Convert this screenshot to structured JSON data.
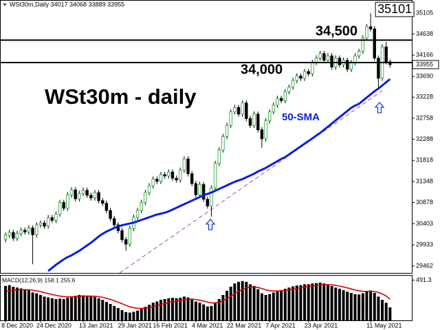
{
  "chart_data": {
    "type": "candlestick",
    "header": "WSt30m,Daily 34017 34068 33889 33955",
    "title": "WSt30m - daily",
    "categories": [
      "8 Dec 2020",
      null,
      null,
      null,
      null,
      null,
      null,
      null,
      null,
      "24 Dec 2020",
      null,
      null,
      null,
      null,
      null,
      null,
      null,
      null,
      null,
      null,
      "13 Jan 2021",
      null,
      null,
      null,
      null,
      null,
      null,
      null,
      null,
      null,
      "29 Jan 2021",
      null,
      null,
      null,
      null,
      null,
      null,
      null,
      null,
      "16 Feb 2021",
      null,
      null,
      null,
      null,
      null,
      null,
      null,
      null,
      null,
      "4 Mar 2021",
      null,
      null,
      null,
      null,
      null,
      null,
      null,
      null,
      "22 Mar 2021",
      null,
      null,
      null,
      null,
      null,
      null,
      null,
      null,
      null,
      "7 Apr 2021",
      null,
      null,
      null,
      null,
      null,
      null,
      null,
      null,
      null,
      "23 Apr 2021",
      null,
      null,
      null,
      null,
      null,
      null,
      null,
      null,
      null,
      null,
      null,
      null,
      null,
      null,
      null,
      "11 May 2021",
      null,
      null,
      null,
      null,
      null
    ],
    "open": [
      30050,
      30150,
      30210,
      30080,
      30190,
      30260,
      30220,
      30310,
      30160,
      30380,
      30420,
      30350,
      30540,
      30480,
      30620,
      30880,
      30750,
      31050,
      31160,
      30960,
      31080,
      31150,
      31040,
      30980,
      31100,
      30920,
      30860,
      30700,
      30520,
      30380,
      30250,
      30050,
      29950,
      30300,
      30550,
      30700,
      30880,
      31100,
      31250,
      31400,
      31350,
      31500,
      31470,
      31560,
      31420,
      31380,
      31600,
      31850,
      31520,
      31300,
      31050,
      31280,
      30950,
      30800,
      31200,
      31750,
      32050,
      32350,
      32600,
      32900,
      33000,
      32850,
      33100,
      32750,
      32600,
      32850,
      32500,
      32300,
      32700,
      32900,
      33050,
      33200,
      33150,
      33350,
      33450,
      33600,
      33700,
      33650,
      33800,
      33750,
      34000,
      34100,
      34200,
      34050,
      34150,
      33900,
      34100,
      33950,
      34050,
      33850,
      34000,
      34150,
      34250,
      34550,
      34800,
      34750,
      34100,
      33650,
      34350,
      34017
    ],
    "high": [
      30210,
      30270,
      30270,
      30250,
      30320,
      30320,
      30370,
      30370,
      30440,
      30480,
      30480,
      30600,
      30600,
      30680,
      30940,
      30940,
      31110,
      31220,
      31220,
      31140,
      31210,
      31210,
      31100,
      31160,
      31160,
      30980,
      30920,
      30760,
      30580,
      30440,
      30310,
      30110,
      30360,
      30610,
      30760,
      30940,
      31160,
      31310,
      31460,
      31460,
      31560,
      31560,
      31620,
      31620,
      31480,
      31660,
      31910,
      31910,
      31580,
      31360,
      31340,
      31340,
      31010,
      31260,
      31810,
      32110,
      32410,
      32660,
      32960,
      33060,
      33060,
      33160,
      33160,
      32810,
      32910,
      32910,
      32560,
      32760,
      32960,
      33110,
      33260,
      33260,
      33410,
      33510,
      33660,
      33760,
      33760,
      33860,
      33860,
      34060,
      34160,
      34260,
      34260,
      34210,
      34210,
      34160,
      34160,
      34110,
      34110,
      34060,
      34210,
      34310,
      34610,
      34860,
      35101,
      34810,
      34160,
      34410,
      34460,
      34068
    ],
    "low": [
      29990,
      30090,
      30020,
      30020,
      30130,
      30160,
      30160,
      29500,
      30100,
      30320,
      30290,
      30290,
      30420,
      30420,
      30560,
      30690,
      30690,
      30990,
      30900,
      30900,
      31020,
      30980,
      30920,
      30920,
      30860,
      30800,
      30640,
      30460,
      30320,
      30190,
      29990,
      29800,
      29890,
      30240,
      30490,
      30640,
      30820,
      31040,
      31190,
      31290,
      31290,
      31410,
      31410,
      31360,
      31320,
      31320,
      31540,
      31460,
      31240,
      30990,
      30990,
      30890,
      30740,
      30560,
      31140,
      31690,
      31990,
      32290,
      32540,
      32840,
      32790,
      32790,
      32690,
      32540,
      32540,
      32440,
      32100,
      32240,
      32640,
      32840,
      32990,
      33090,
      33090,
      33290,
      33390,
      33540,
      33590,
      33590,
      33690,
      33690,
      33940,
      34040,
      33990,
      33990,
      33840,
      33840,
      33890,
      33890,
      33790,
      33790,
      33940,
      34090,
      34190,
      34490,
      34690,
      34040,
      33420,
      33590,
      33960,
      33889
    ],
    "close": [
      30150,
      30210,
      30080,
      30190,
      30260,
      30220,
      30310,
      30160,
      30380,
      30420,
      30350,
      30540,
      30480,
      30620,
      30880,
      30750,
      31050,
      31160,
      30960,
      31080,
      31150,
      31040,
      30980,
      31100,
      30920,
      30860,
      30700,
      30520,
      30380,
      30250,
      30050,
      29950,
      30300,
      30550,
      30700,
      30880,
      31100,
      31250,
      31400,
      31350,
      31500,
      31470,
      31560,
      31420,
      31380,
      31600,
      31850,
      31520,
      31300,
      31050,
      31280,
      30950,
      30800,
      31200,
      31750,
      32050,
      32350,
      32600,
      32900,
      33000,
      32850,
      33100,
      32750,
      32600,
      32850,
      32500,
      32300,
      32700,
      32900,
      33050,
      33200,
      33150,
      33350,
      33450,
      33600,
      33700,
      33650,
      33800,
      33750,
      34000,
      34100,
      34200,
      34050,
      34150,
      33900,
      34100,
      33950,
      34050,
      33850,
      34000,
      34150,
      34250,
      34550,
      34800,
      34750,
      34100,
      33650,
      34350,
      34017,
      33955
    ],
    "up_color": "#ffffff",
    "up_stroke": "#1f9a2e",
    "down_color": "#000000",
    "ylim": [
      29307,
      35380
    ],
    "yticks": [
      29462,
      29933,
      30403,
      30878,
      31348,
      31818,
      32288,
      32758,
      33228,
      33690,
      34166,
      34638,
      35105
    ],
    "series": [
      {
        "name": "50-SMA",
        "color": "#0a1ee0",
        "values": [
          null,
          null,
          null,
          null,
          null,
          null,
          null,
          null,
          null,
          null,
          null,
          29350,
          29420,
          29490,
          29550,
          29610,
          29660,
          29700,
          29750,
          29800,
          29860,
          29920,
          29980,
          30050,
          30120,
          30180,
          30230,
          30270,
          30310,
          30345,
          30370,
          30390,
          30410,
          30430,
          30460,
          30490,
          30520,
          30550,
          30580,
          30610,
          30630,
          30650,
          30680,
          30720,
          30760,
          30800,
          30840,
          30880,
          30920,
          30960,
          31000,
          31040,
          31070,
          31100,
          31140,
          31180,
          31220,
          31260,
          31300,
          31340,
          31370,
          31400,
          31440,
          31480,
          31520,
          31570,
          31610,
          31650,
          31700,
          31750,
          31800,
          31850,
          31890,
          31950,
          32010,
          32070,
          32130,
          32190,
          32250,
          32310,
          32370,
          32430,
          32500,
          32570,
          32640,
          32710,
          32780,
          32850,
          32920,
          32990,
          33040,
          33080,
          33150,
          33220,
          33290,
          33360,
          33420,
          33490,
          33560,
          33630
        ]
      }
    ],
    "levels": [
      {
        "value": 34500,
        "label": "34,500"
      },
      {
        "value": 34000,
        "label": "34,000"
      }
    ],
    "macd": {
      "title": "MACD(12,26,9) 158.1 255.6",
      "color": "#000000",
      "histogram": [
        420,
        430,
        410,
        400,
        390,
        380,
        370,
        340,
        330,
        310,
        290,
        280,
        270,
        260,
        265,
        260,
        275,
        290,
        300,
        310,
        305,
        300,
        290,
        285,
        270,
        250,
        225,
        200,
        175,
        150,
        125,
        100,
        95,
        105,
        120,
        140,
        165,
        190,
        215,
        230,
        250,
        260,
        270,
        275,
        270,
        275,
        290,
        280,
        260,
        230,
        215,
        195,
        170,
        175,
        210,
        260,
        310,
        360,
        410,
        450,
        470,
        480,
        470,
        440,
        420,
        380,
        330,
        310,
        320,
        340,
        360,
        370,
        385,
        400,
        415,
        425,
        430,
        440,
        440,
        450,
        455,
        460,
        450,
        440,
        420,
        400,
        385,
        370,
        350,
        335,
        320,
        315,
        330,
        355,
        365,
        335,
        290,
        250,
        215,
        158.1
      ],
      "signal": {
        "color": "#e00000",
        "values": [
          350,
          360,
          368,
          372,
          375,
          375,
          374,
          368,
          361,
          351,
          339,
          327,
          316,
          305,
          297,
          290,
          287,
          287,
          289,
          293,
          296,
          297,
          296,
          294,
          289,
          282,
          270,
          256,
          240,
          222,
          203,
          183,
          166,
          153,
          147,
          146,
          149,
          157,
          168,
          180,
          193,
          205,
          217,
          228,
          236,
          244,
          253,
          258,
          259,
          254,
          246,
          236,
          223,
          213,
          213,
          222,
          240,
          264,
          293,
          324,
          353,
          378,
          396,
          405,
          408,
          402,
          388,
          372,
          362,
          358,
          358,
          360,
          365,
          372,
          380,
          389,
          397,
          405,
          412,
          419,
          426,
          433,
          436,
          437,
          434,
          427,
          418,
          408,
          396,
          384,
          371,
          360,
          354,
          354,
          356,
          352,
          340,
          322,
          298,
          255.6
        ]
      },
      "ylim": [
        0,
        545
      ],
      "yticks": [
        491.3
      ]
    }
  }
}
